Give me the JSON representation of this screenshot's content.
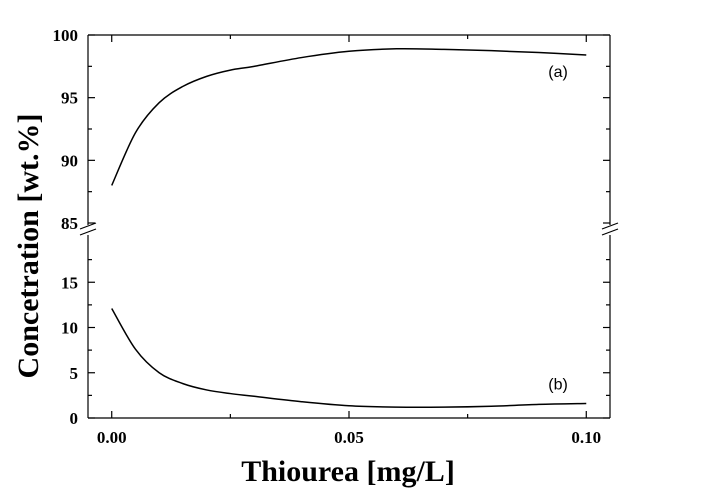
{
  "chart_data": {
    "type": "line",
    "title": "",
    "xlabel": "Thiourea [mg/L]",
    "ylabel": "Concetration [wt.%]",
    "xlim": [
      -0.005,
      0.105
    ],
    "x_ticks": [
      {
        "value": 0.0,
        "label": "0.00"
      },
      {
        "value": 0.05,
        "label": "0.05"
      },
      {
        "value": 0.1,
        "label": "0.10"
      }
    ],
    "y_break": true,
    "upper_panel": {
      "ylim": [
        85,
        100
      ],
      "y_ticks": [
        {
          "value": 85,
          "label": "85"
        },
        {
          "value": 90,
          "label": "90"
        },
        {
          "value": 95,
          "label": "95"
        },
        {
          "value": 100,
          "label": "100"
        }
      ]
    },
    "lower_panel": {
      "ylim": [
        0,
        20
      ],
      "y_ticks": [
        {
          "value": 0,
          "label": "0"
        },
        {
          "value": 5,
          "label": "5"
        },
        {
          "value": 10,
          "label": "10"
        },
        {
          "value": 15,
          "label": "15"
        }
      ]
    },
    "series": [
      {
        "label": "(a)",
        "panel": "upper",
        "x": [
          0.0,
          0.005,
          0.01,
          0.015,
          0.02,
          0.025,
          0.03,
          0.04,
          0.05,
          0.06,
          0.07,
          0.08,
          0.09,
          0.1
        ],
        "y": [
          88.0,
          92.2,
          94.6,
          95.9,
          96.7,
          97.2,
          97.5,
          98.2,
          98.7,
          98.9,
          98.85,
          98.75,
          98.6,
          98.4
        ]
      },
      {
        "label": "(b)",
        "panel": "lower",
        "x": [
          0.0,
          0.005,
          0.01,
          0.015,
          0.02,
          0.025,
          0.03,
          0.04,
          0.05,
          0.06,
          0.07,
          0.08,
          0.09,
          0.1
        ],
        "y": [
          12.1,
          7.6,
          5.0,
          3.8,
          3.1,
          2.7,
          2.4,
          1.8,
          1.35,
          1.2,
          1.2,
          1.3,
          1.5,
          1.6
        ]
      }
    ]
  }
}
